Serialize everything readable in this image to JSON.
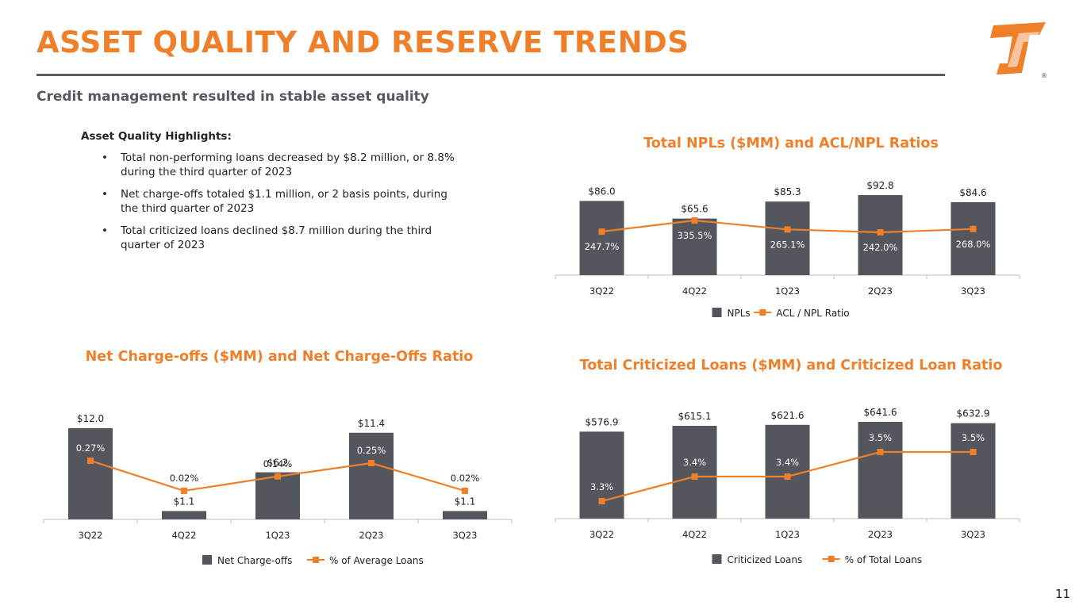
{
  "header": {
    "title": "ASSET QUALITY AND RESERVE TRENDS",
    "subtitle": "Credit management resulted in stable asset quality",
    "logo_mark": "®"
  },
  "highlights": {
    "heading": "Asset Quality Highlights:",
    "items": [
      {
        "line1": "Total non-performing loans decreased by $8.2 million, or 8.8%",
        "line2": "during the third quarter of 2023"
      },
      {
        "line1": "Net charge-offs totaled $1.1 million, or 2 basis points, during",
        "line2": "the third quarter of 2023"
      },
      {
        "line1": "Total criticized loans declined $8.7 million during the third",
        "line2": "quarter of 2023"
      }
    ]
  },
  "colors": {
    "accent": "#f07f2a",
    "bar": "#54565e",
    "rule": "#5a5d66"
  },
  "chart_data": [
    {
      "type": "bar",
      "title": "Total NPLs ($MM) and ACL/NPL Ratios",
      "categories": [
        "3Q22",
        "4Q22",
        "1Q23",
        "2Q23",
        "3Q23"
      ],
      "series": [
        {
          "name": "NPLs",
          "kind": "bar",
          "values": [
            86.0,
            65.6,
            85.3,
            92.8,
            84.6
          ],
          "labels": [
            "$86.0",
            "$65.6",
            "$85.3",
            "$92.8",
            "$84.6"
          ]
        },
        {
          "name": "ACL / NPL Ratio",
          "kind": "line",
          "values": [
            247.7,
            335.5,
            265.1,
            242.0,
            268.0
          ],
          "labels": [
            "247.7%",
            "335.5%",
            "265.1%",
            "242.0%",
            "268.0%"
          ]
        }
      ],
      "legend": [
        "NPLs",
        "ACL / NPL Ratio"
      ]
    },
    {
      "type": "bar",
      "title": "Net Charge-offs ($MM) and Net Charge-Offs Ratio",
      "categories": [
        "3Q22",
        "4Q22",
        "1Q23",
        "2Q23",
        "3Q23"
      ],
      "series": [
        {
          "name": "Net Charge-offs",
          "kind": "bar",
          "values": [
            12.0,
            1.1,
            6.2,
            11.4,
            1.1
          ],
          "labels": [
            "$12.0",
            "$1.1",
            "$6.2",
            "$11.4",
            "$1.1"
          ]
        },
        {
          "name": "% of Average Loans",
          "kind": "line",
          "values": [
            0.27,
            0.02,
            0.14,
            0.25,
            0.02
          ],
          "labels": [
            "0.27%",
            "0.02%",
            "0.14%",
            "0.25%",
            "0.02%"
          ]
        }
      ],
      "legend": [
        "Net Charge-offs",
        "% of Average Loans"
      ]
    },
    {
      "type": "bar",
      "title": "Total Criticized Loans ($MM) and Criticized Loan Ratio",
      "categories": [
        "3Q22",
        "4Q22",
        "1Q23",
        "2Q23",
        "3Q23"
      ],
      "series": [
        {
          "name": "Criticized Loans",
          "kind": "bar",
          "values": [
            576.9,
            615.1,
            621.6,
            641.6,
            632.9
          ],
          "labels": [
            "$576.9",
            "$615.1",
            "$621.6",
            "$641.6",
            "$632.9"
          ]
        },
        {
          "name": "% of Total Loans",
          "kind": "line",
          "values": [
            3.3,
            3.4,
            3.4,
            3.5,
            3.5
          ],
          "labels": [
            "3.3%",
            "3.4%",
            "3.4%",
            "3.5%",
            "3.5%"
          ]
        }
      ],
      "legend": [
        "Criticized Loans",
        "% of Total Loans"
      ]
    }
  ],
  "footer": {
    "page_number": "11"
  }
}
